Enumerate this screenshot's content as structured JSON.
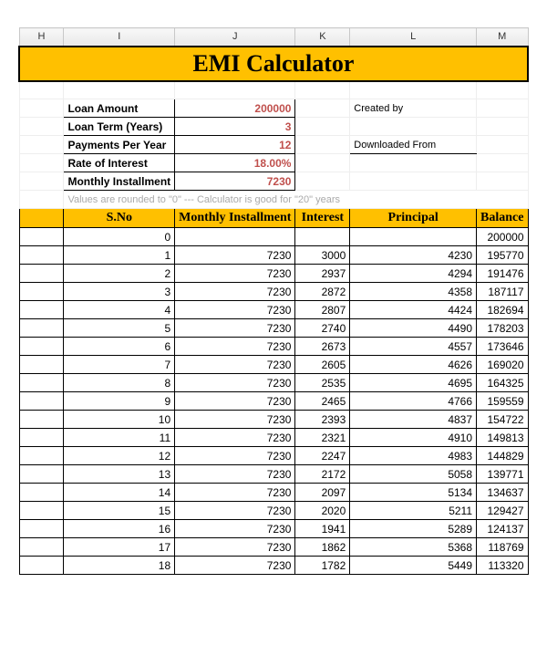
{
  "columns": {
    "H": {
      "letter": "H",
      "width": 50
    },
    "I": {
      "letter": "I",
      "width": 108
    },
    "J": {
      "letter": "J",
      "width": 108
    },
    "K": {
      "letter": "K",
      "width": 60
    },
    "L": {
      "letter": "L",
      "width": 140
    },
    "M": {
      "letter": "M",
      "width": 56
    }
  },
  "title": "EMI Calculator",
  "params": {
    "loan_amount": {
      "label": "Loan Amount",
      "value": "200000"
    },
    "loan_term": {
      "label": "Loan Term (Years)",
      "value": "3"
    },
    "payments_py": {
      "label": "Payments Per Year",
      "value": "12"
    },
    "rate": {
      "label": "Rate of Interest",
      "value": "18.00%"
    },
    "monthly": {
      "label": "Monthly Installment",
      "value": "7230"
    }
  },
  "extras": {
    "created_by": "Created by",
    "downloaded_from": "Downloaded From"
  },
  "note": "Values are rounded to \"0\"  ---  Calculator is good for \"20\" years",
  "table": {
    "headers": {
      "sno": "S.No",
      "inst": "Monthly Installment",
      "interest": "Interest",
      "principal": "Principal",
      "balance": "Balance"
    },
    "rows": [
      {
        "sno": 0,
        "inst": "",
        "interest": "",
        "principal": "",
        "balance": 200000
      },
      {
        "sno": 1,
        "inst": 7230,
        "interest": 3000,
        "principal": 4230,
        "balance": 195770
      },
      {
        "sno": 2,
        "inst": 7230,
        "interest": 2937,
        "principal": 4294,
        "balance": 191476
      },
      {
        "sno": 3,
        "inst": 7230,
        "interest": 2872,
        "principal": 4358,
        "balance": 187117
      },
      {
        "sno": 4,
        "inst": 7230,
        "interest": 2807,
        "principal": 4424,
        "balance": 182694
      },
      {
        "sno": 5,
        "inst": 7230,
        "interest": 2740,
        "principal": 4490,
        "balance": 178203
      },
      {
        "sno": 6,
        "inst": 7230,
        "interest": 2673,
        "principal": 4557,
        "balance": 173646
      },
      {
        "sno": 7,
        "inst": 7230,
        "interest": 2605,
        "principal": 4626,
        "balance": 169020
      },
      {
        "sno": 8,
        "inst": 7230,
        "interest": 2535,
        "principal": 4695,
        "balance": 164325
      },
      {
        "sno": 9,
        "inst": 7230,
        "interest": 2465,
        "principal": 4766,
        "balance": 159559
      },
      {
        "sno": 10,
        "inst": 7230,
        "interest": 2393,
        "principal": 4837,
        "balance": 154722
      },
      {
        "sno": 11,
        "inst": 7230,
        "interest": 2321,
        "principal": 4910,
        "balance": 149813
      },
      {
        "sno": 12,
        "inst": 7230,
        "interest": 2247,
        "principal": 4983,
        "balance": 144829
      },
      {
        "sno": 13,
        "inst": 7230,
        "interest": 2172,
        "principal": 5058,
        "balance": 139771
      },
      {
        "sno": 14,
        "inst": 7230,
        "interest": 2097,
        "principal": 5134,
        "balance": 134637
      },
      {
        "sno": 15,
        "inst": 7230,
        "interest": 2020,
        "principal": 5211,
        "balance": 129427
      },
      {
        "sno": 16,
        "inst": 7230,
        "interest": 1941,
        "principal": 5289,
        "balance": 124137
      },
      {
        "sno": 17,
        "inst": 7230,
        "interest": 1862,
        "principal": 5368,
        "balance": 118769
      },
      {
        "sno": 18,
        "inst": 7230,
        "interest": 1782,
        "principal": 5449,
        "balance": 113320
      }
    ]
  },
  "style": {
    "header_bg": "#ffc000",
    "value_color": "#c0504d",
    "grid_color": "#c8c8c8"
  }
}
